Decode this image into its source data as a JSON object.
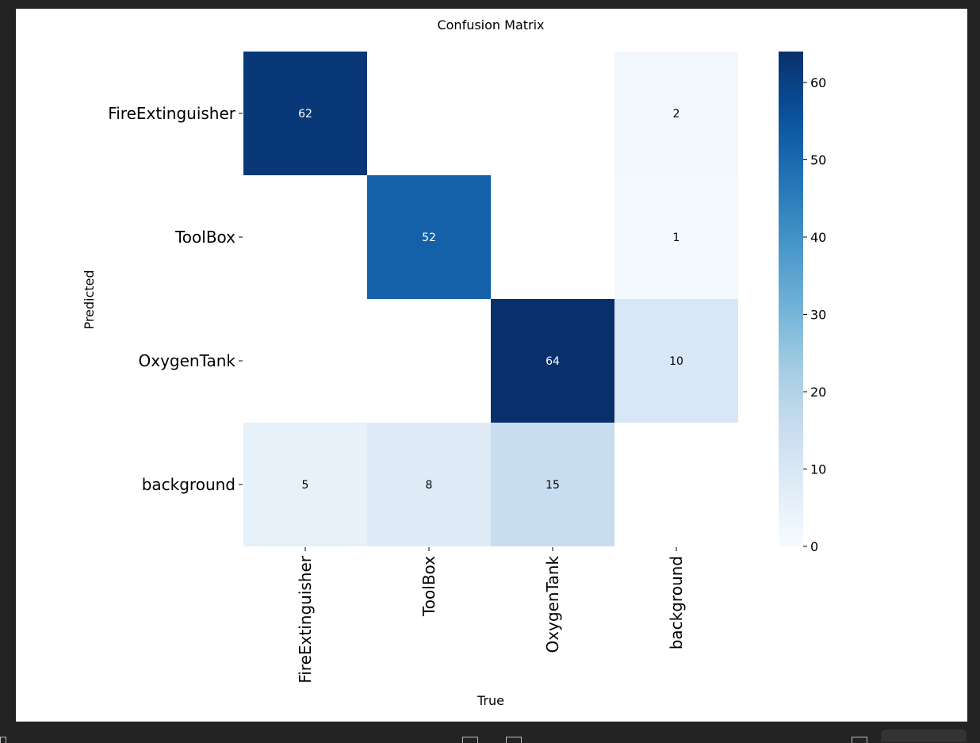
{
  "chart_data": {
    "type": "heatmap",
    "title": "Confusion Matrix",
    "xlabel": "True",
    "ylabel": "Predicted",
    "x_categories": [
      "FireExtinguisher",
      "ToolBox",
      "OxygenTank",
      "background"
    ],
    "y_categories": [
      "FireExtinguisher",
      "ToolBox",
      "OxygenTank",
      "background"
    ],
    "values": [
      [
        62,
        null,
        null,
        2
      ],
      [
        null,
        52,
        null,
        1
      ],
      [
        null,
        null,
        64,
        10
      ],
      [
        5,
        8,
        15,
        null
      ]
    ],
    "colorscale": "Blues",
    "vmin": 0,
    "vmax": 64,
    "colorbar_ticks": [
      0,
      10,
      20,
      30,
      40,
      50,
      60
    ]
  }
}
